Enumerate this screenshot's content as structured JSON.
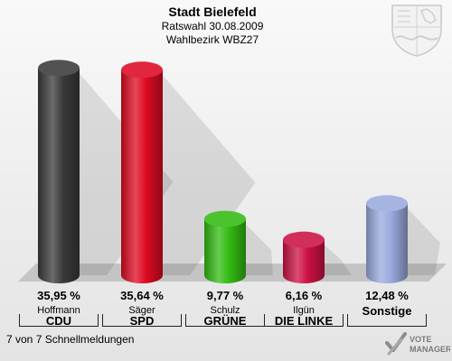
{
  "header": {
    "title": "Stadt Bielefeld",
    "line1": "Ratswahl 30.08.2009",
    "line2": "Wahlbezirk WBZ27"
  },
  "footer": {
    "text": "7 von 7 Schnellmeldungen"
  },
  "logo": {
    "line1": "VOTE",
    "line2": "MANAGER"
  },
  "chart_data": {
    "type": "bar",
    "categories": [
      "CDU",
      "SPD",
      "GRÜNE",
      "DIE LINKE",
      "Sonstige"
    ],
    "candidates": [
      "Hoffmann",
      "Säger",
      "Schulz",
      "Ilgün",
      ""
    ],
    "values": [
      35.95,
      35.64,
      9.77,
      6.16,
      12.48
    ],
    "value_labels": [
      "35,95 %",
      "35,64 %",
      "9,77 %",
      "6,16 %",
      "12,48 %"
    ],
    "colors": [
      "#3a3a3a",
      "#dd0a22",
      "#33bb11",
      "#cc1144",
      "#99aadd"
    ],
    "ylim": [
      0,
      36
    ]
  }
}
